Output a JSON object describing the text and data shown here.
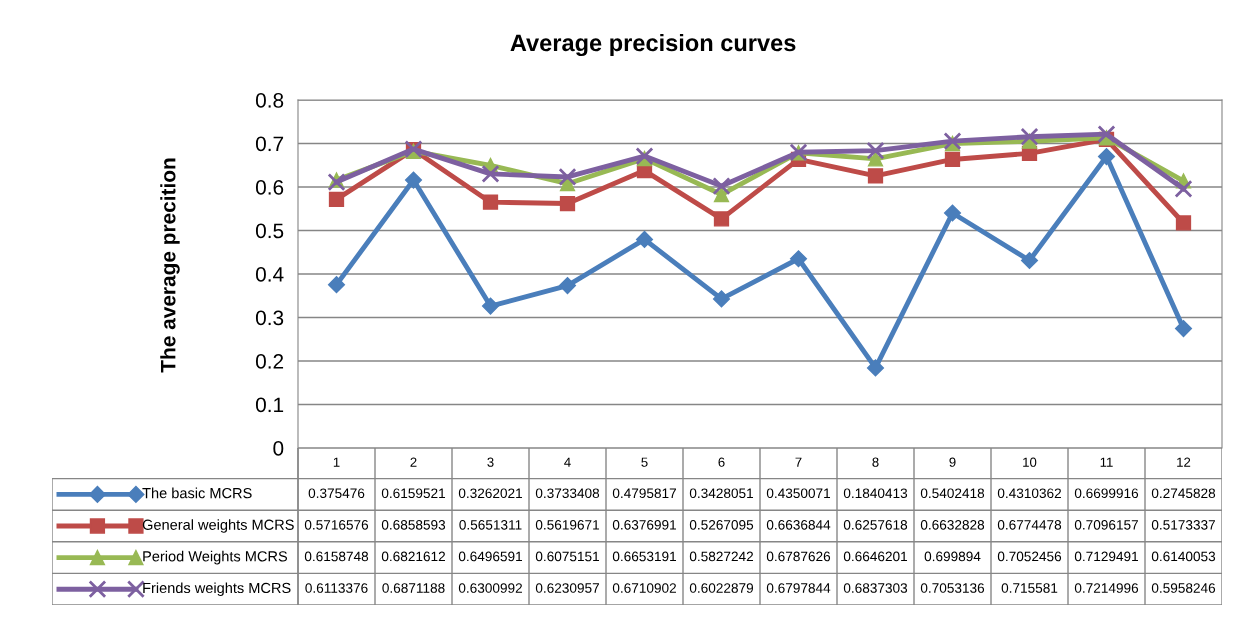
{
  "chart_data": {
    "type": "line",
    "title": "Average precision curves",
    "ylabel": "The average precition",
    "categories": [
      "1",
      "2",
      "3",
      "4",
      "5",
      "6",
      "7",
      "8",
      "9",
      "10",
      "11",
      "12"
    ],
    "ylim": [
      0,
      0.8
    ],
    "yticks": [
      0,
      0.1,
      0.2,
      0.3,
      0.4,
      0.5,
      0.6,
      0.7,
      0.8
    ],
    "grid": "y",
    "legend": "bottom",
    "data_labels": true,
    "series": [
      {
        "name": "The basic MCRS",
        "color": "#4a7ebb",
        "marker": "diamond",
        "values": [
          0.375476,
          0.6159521,
          0.3262021,
          0.3733408,
          0.4795817,
          0.3428051,
          0.4350071,
          0.1840413,
          0.5402418,
          0.4310362,
          0.6699916,
          0.2745828
        ]
      },
      {
        "name": "General weights MCRS",
        "color": "#be4b48",
        "marker": "square",
        "values": [
          0.5716576,
          0.6858593,
          0.5651311,
          0.5619671,
          0.6376991,
          0.5267095,
          0.6636844,
          0.6257618,
          0.6632828,
          0.6774478,
          0.7096157,
          0.5173337
        ]
      },
      {
        "name": "Period Weights MCRS",
        "color": "#98b954",
        "marker": "triangle",
        "values": [
          0.6158748,
          0.6821612,
          0.6496591,
          0.6075151,
          0.6653191,
          0.5827242,
          0.6787626,
          0.6646201,
          0.699894,
          0.7052456,
          0.7129491,
          0.6140053
        ]
      },
      {
        "name": "Friends weights MCRS",
        "color": "#7d60a0",
        "marker": "cross",
        "values": [
          0.6113376,
          0.6871188,
          0.6300992,
          0.6230957,
          0.6710902,
          0.6022879,
          0.6797844,
          0.6837303,
          0.7053136,
          0.715581,
          0.7214996,
          0.5958246
        ]
      }
    ]
  }
}
